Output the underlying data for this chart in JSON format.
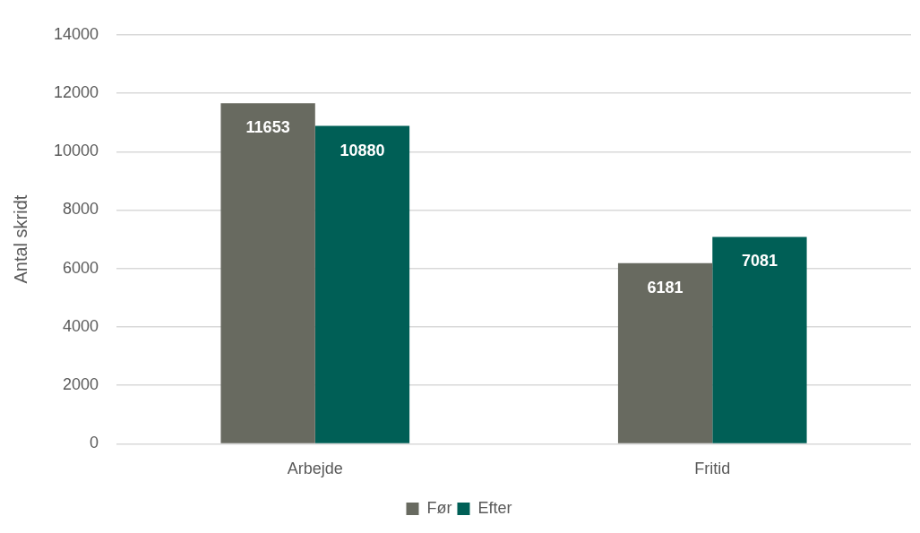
{
  "chart_data": {
    "type": "bar",
    "ylabel": "Antal skridt",
    "categories": [
      "Arbejde",
      "Fritid"
    ],
    "series": [
      {
        "name": "Før",
        "color": "#686a60",
        "values": [
          11653,
          6181
        ]
      },
      {
        "name": "Efter",
        "color": "#005f56",
        "values": [
          10880,
          7081
        ]
      }
    ],
    "ylim": [
      0,
      14000
    ],
    "yticks": [
      0,
      2000,
      4000,
      6000,
      8000,
      10000,
      12000,
      14000
    ],
    "grid": "y",
    "legend": "bottom",
    "data_labels": true
  }
}
